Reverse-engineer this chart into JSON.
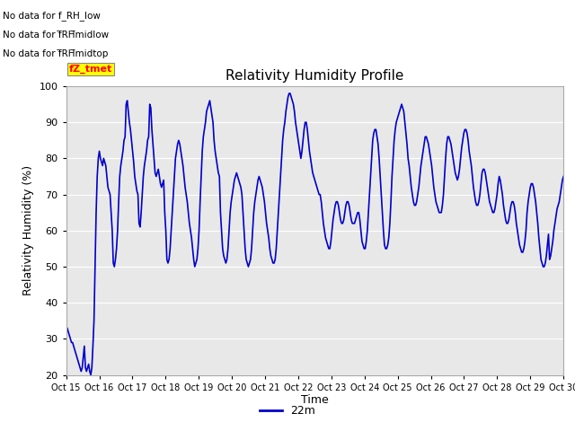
{
  "title": "Relativity Humidity Profile",
  "xlabel": "Time",
  "ylabel": "Relativity Humidity (%)",
  "ylim": [
    20,
    100
  ],
  "yticks": [
    20,
    30,
    40,
    50,
    60,
    70,
    80,
    90,
    100
  ],
  "line_color": "#0000CC",
  "line_width": 1.2,
  "legend_label": "22m",
  "legend_line_color": "#0000CC",
  "bg_color": "#E8E8E8",
  "fig_bg_color": "#FFFFFF",
  "no_data_labels": [
    "No data for f_RH_low",
    "No data for f̅RH̅midlow",
    "No data for f̅RH̅midtop"
  ],
  "fz_tmet_label": "fZ_tmet",
  "x_tick_labels": [
    "Oct 15",
    "Oct 16",
    "Oct 17",
    "Oct 18",
    "Oct 19",
    "Oct 20",
    "Oct 21",
    "Oct 22",
    "Oct 23",
    "Oct 24",
    "Oct 25",
    "Oct 26",
    "Oct 27",
    "Oct 28",
    "Oct 29",
    "Oct 30"
  ],
  "rh_values": [
    32,
    33,
    32,
    31,
    30,
    29,
    29,
    28,
    27,
    26,
    25,
    24,
    23,
    22,
    21,
    22,
    25,
    28,
    22,
    21,
    22,
    23,
    21,
    20,
    22,
    28,
    35,
    50,
    65,
    75,
    80,
    82,
    80,
    79,
    78,
    80,
    79,
    78,
    75,
    72,
    71,
    70,
    65,
    60,
    51,
    50,
    52,
    55,
    60,
    68,
    75,
    78,
    80,
    82,
    85,
    86,
    95,
    96,
    93,
    90,
    88,
    85,
    82,
    79,
    75,
    73,
    71,
    70,
    62,
    61,
    65,
    70,
    75,
    78,
    80,
    82,
    85,
    86,
    95,
    94,
    88,
    84,
    80,
    76,
    75,
    76,
    77,
    75,
    73,
    72,
    73,
    74,
    65,
    60,
    52,
    51,
    52,
    55,
    60,
    65,
    70,
    75,
    80,
    82,
    84,
    85,
    84,
    82,
    80,
    78,
    75,
    72,
    70,
    68,
    65,
    62,
    60,
    58,
    55,
    52,
    50,
    51,
    52,
    55,
    60,
    68,
    75,
    82,
    86,
    88,
    90,
    93,
    94,
    95,
    96,
    94,
    92,
    90,
    85,
    82,
    80,
    78,
    76,
    75,
    65,
    60,
    55,
    53,
    52,
    51,
    52,
    55,
    60,
    65,
    68,
    70,
    72,
    74,
    75,
    76,
    75,
    74,
    73,
    72,
    70,
    65,
    60,
    55,
    52,
    51,
    50,
    51,
    52,
    55,
    60,
    65,
    68,
    70,
    72,
    74,
    75,
    74,
    73,
    72,
    70,
    68,
    65,
    62,
    60,
    58,
    55,
    53,
    52,
    51,
    51,
    52,
    55,
    60,
    65,
    70,
    75,
    80,
    85,
    88,
    90,
    93,
    95,
    97,
    98,
    98,
    97,
    96,
    95,
    93,
    90,
    88,
    86,
    84,
    82,
    80,
    82,
    85,
    88,
    90,
    90,
    88,
    85,
    82,
    80,
    78,
    76,
    75,
    74,
    73,
    72,
    71,
    70,
    70,
    68,
    65,
    62,
    60,
    58,
    57,
    56,
    55,
    55,
    57,
    60,
    63,
    65,
    67,
    68,
    68,
    67,
    65,
    63,
    62,
    62,
    63,
    65,
    67,
    68,
    68,
    67,
    65,
    63,
    62,
    62,
    62,
    63,
    64,
    65,
    65,
    63,
    60,
    57,
    56,
    55,
    55,
    57,
    60,
    65,
    70,
    75,
    80,
    85,
    87,
    88,
    88,
    86,
    84,
    80,
    75,
    70,
    65,
    60,
    56,
    55,
    55,
    56,
    58,
    62,
    68,
    75,
    80,
    85,
    88,
    90,
    91,
    92,
    93,
    94,
    95,
    94,
    93,
    90,
    87,
    84,
    80,
    78,
    75,
    72,
    70,
    68,
    67,
    67,
    68,
    70,
    72,
    75,
    78,
    80,
    82,
    84,
    86,
    86,
    85,
    84,
    82,
    80,
    78,
    75,
    72,
    70,
    68,
    67,
    66,
    65,
    65,
    65,
    67,
    70,
    75,
    80,
    84,
    86,
    86,
    85,
    84,
    82,
    80,
    78,
    76,
    75,
    74,
    75,
    77,
    80,
    83,
    85,
    87,
    88,
    88,
    87,
    85,
    82,
    80,
    78,
    75,
    72,
    70,
    68,
    67,
    67,
    68,
    70,
    73,
    76,
    77,
    77,
    76,
    74,
    72,
    70,
    68,
    67,
    66,
    65,
    65,
    66,
    68,
    70,
    73,
    75,
    74,
    72,
    70,
    67,
    65,
    63,
    62,
    62,
    63,
    65,
    67,
    68,
    68,
    67,
    65,
    62,
    60,
    58,
    56,
    55,
    54,
    54,
    55,
    57,
    60,
    65,
    68,
    70,
    72,
    73,
    73,
    72,
    70,
    68,
    65,
    62,
    58,
    55,
    52,
    51,
    50,
    50,
    51,
    53,
    56,
    59,
    52,
    53,
    55,
    57,
    60,
    62,
    64,
    66,
    67,
    68,
    70,
    72,
    74,
    75
  ]
}
